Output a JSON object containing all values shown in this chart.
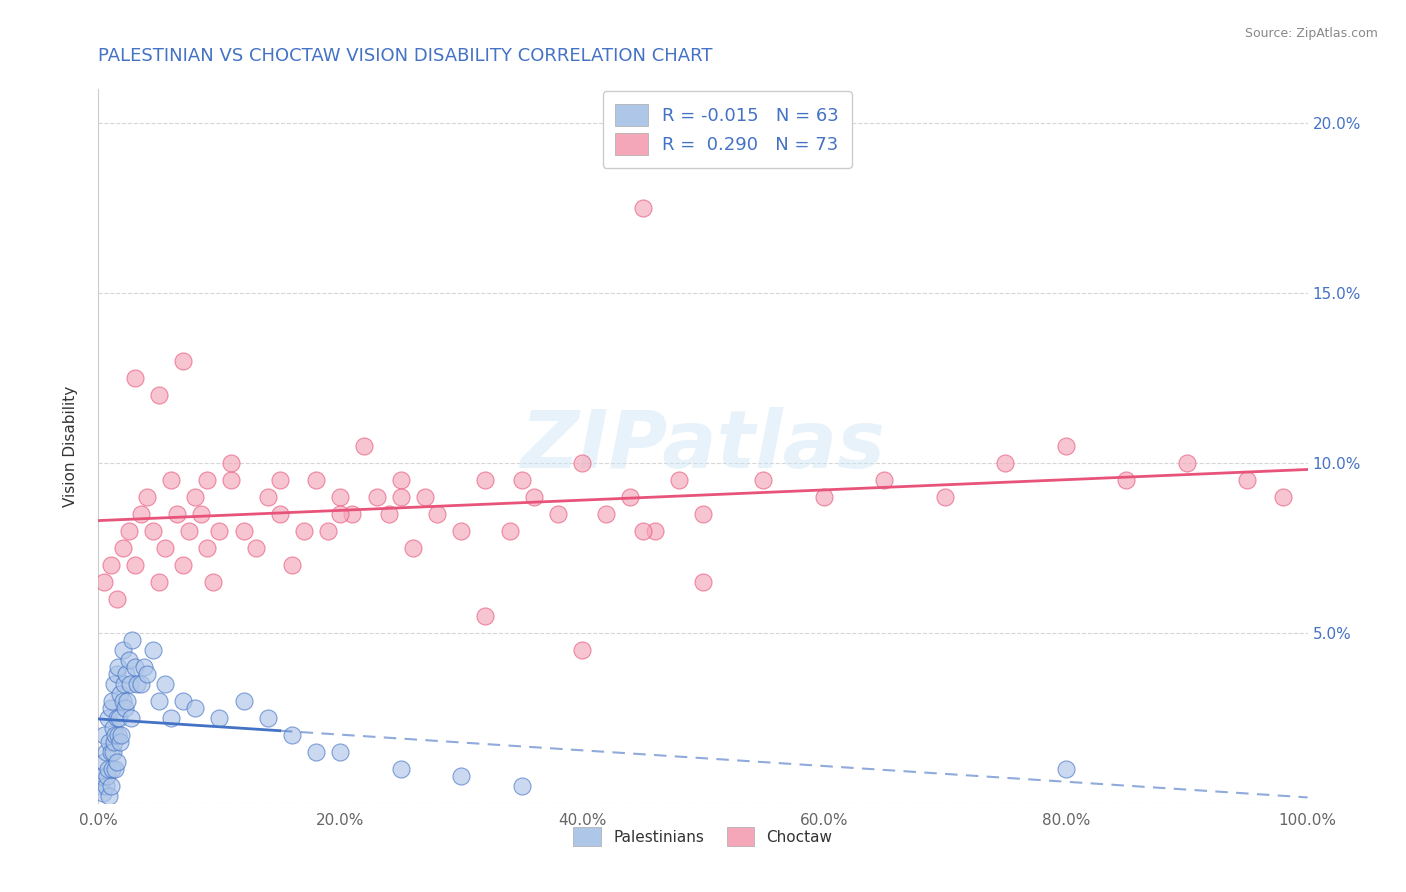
{
  "title": "PALESTINIAN VS CHOCTAW VISION DISABILITY CORRELATION CHART",
  "source": "Source: ZipAtlas.com",
  "ylabel": "Vision Disability",
  "legend_labels": [
    "Palestinians",
    "Choctaw"
  ],
  "legend_r": [
    -0.015,
    0.29
  ],
  "legend_n": [
    63,
    73
  ],
  "blue_color": "#aec6e8",
  "pink_color": "#f4a7b9",
  "blue_line_color": "#4472c4",
  "pink_line_color": "#e8537a",
  "axis_color": "#4472c4",
  "xlim": [
    0,
    100
  ],
  "ylim": [
    0,
    21
  ],
  "xticks": [
    0,
    20,
    40,
    60,
    80,
    100
  ],
  "yticks": [
    0,
    5,
    10,
    15,
    20
  ],
  "ytick_labels": [
    "",
    "5.0%",
    "10.0%",
    "15.0%",
    "20.0%"
  ],
  "xtick_labels": [
    "0.0%",
    "20.0%",
    "40.0%",
    "60.0%",
    "80.0%",
    "100.0%"
  ],
  "grid_color": "#cccccc",
  "background_color": "#ffffff",
  "watermark": "ZIPatlas",
  "palestinian_x": [
    0.2,
    0.3,
    0.4,
    0.5,
    0.5,
    0.6,
    0.6,
    0.7,
    0.8,
    0.8,
    0.9,
    0.9,
    1.0,
    1.0,
    1.0,
    1.1,
    1.1,
    1.2,
    1.2,
    1.3,
    1.3,
    1.4,
    1.4,
    1.5,
    1.5,
    1.5,
    1.6,
    1.6,
    1.7,
    1.8,
    1.8,
    1.9,
    2.0,
    2.0,
    2.1,
    2.2,
    2.3,
    2.4,
    2.5,
    2.6,
    2.7,
    2.8,
    3.0,
    3.2,
    3.5,
    3.8,
    4.0,
    4.5,
    5.0,
    5.5,
    6.0,
    7.0,
    8.0,
    10.0,
    12.0,
    14.0,
    16.0,
    18.0,
    20.0,
    25.0,
    30.0,
    35.0,
    80.0
  ],
  "palestinian_y": [
    0.5,
    0.8,
    0.3,
    1.2,
    2.0,
    0.5,
    1.5,
    0.8,
    1.0,
    2.5,
    1.8,
    0.2,
    1.5,
    2.8,
    0.5,
    1.0,
    3.0,
    1.5,
    2.2,
    1.8,
    3.5,
    2.0,
    1.0,
    2.5,
    3.8,
    1.2,
    2.0,
    4.0,
    2.5,
    1.8,
    3.2,
    2.0,
    3.0,
    4.5,
    3.5,
    2.8,
    3.8,
    3.0,
    4.2,
    3.5,
    2.5,
    4.8,
    4.0,
    3.5,
    3.5,
    4.0,
    3.8,
    4.5,
    3.0,
    3.5,
    2.5,
    3.0,
    2.8,
    2.5,
    3.0,
    2.5,
    2.0,
    1.5,
    1.5,
    1.0,
    0.8,
    0.5,
    1.0
  ],
  "choctaw_x": [
    0.5,
    1.0,
    1.5,
    2.0,
    2.5,
    3.0,
    3.5,
    4.0,
    4.5,
    5.0,
    5.5,
    6.0,
    6.5,
    7.0,
    7.5,
    8.0,
    8.5,
    9.0,
    9.5,
    10.0,
    11.0,
    12.0,
    13.0,
    14.0,
    15.0,
    16.0,
    17.0,
    18.0,
    19.0,
    20.0,
    21.0,
    22.0,
    23.0,
    24.0,
    25.0,
    26.0,
    27.0,
    28.0,
    30.0,
    32.0,
    34.0,
    36.0,
    38.0,
    40.0,
    42.0,
    44.0,
    46.0,
    48.0,
    50.0,
    55.0,
    60.0,
    65.0,
    70.0,
    75.0,
    80.0,
    85.0,
    90.0,
    95.0,
    98.0,
    40.0,
    32.0,
    45.0,
    50.0,
    3.0,
    5.0,
    7.0,
    9.0,
    11.0,
    15.0,
    20.0,
    25.0,
    35.0
  ],
  "choctaw_y": [
    6.5,
    7.0,
    6.0,
    7.5,
    8.0,
    7.0,
    8.5,
    9.0,
    8.0,
    6.5,
    7.5,
    9.5,
    8.5,
    7.0,
    8.0,
    9.0,
    8.5,
    7.5,
    6.5,
    8.0,
    9.5,
    8.0,
    7.5,
    9.0,
    8.5,
    7.0,
    8.0,
    9.5,
    8.0,
    9.0,
    8.5,
    10.5,
    9.0,
    8.5,
    9.5,
    7.5,
    9.0,
    8.5,
    8.0,
    9.5,
    8.0,
    9.0,
    8.5,
    10.0,
    8.5,
    9.0,
    8.0,
    9.5,
    8.5,
    9.5,
    9.0,
    9.5,
    9.0,
    10.0,
    10.5,
    9.5,
    10.0,
    9.5,
    9.0,
    4.5,
    5.5,
    8.0,
    6.5,
    12.5,
    12.0,
    13.0,
    9.5,
    10.0,
    9.5,
    8.5,
    9.0,
    9.5
  ],
  "choctaw_outlier_x": [
    45.0
  ],
  "choctaw_outlier_y": [
    17.5
  ],
  "title_fontsize": 13,
  "label_fontsize": 11,
  "tick_fontsize": 11,
  "legend_fontsize": 13
}
